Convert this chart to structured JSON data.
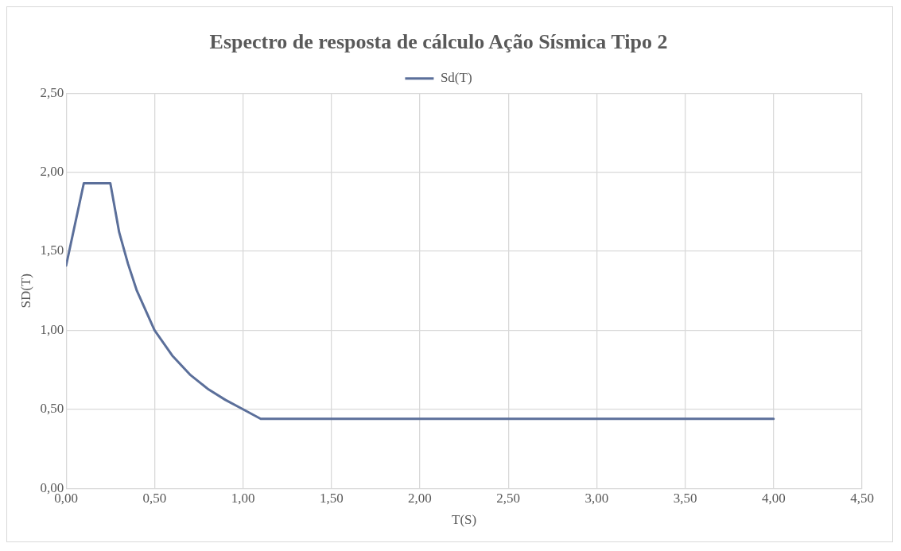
{
  "chart_data": {
    "type": "line",
    "title": "Espectro de resposta de cálculo Ação Sísmica Tipo 2",
    "xlabel": "T(S)",
    "ylabel": "SD(T)",
    "x": [
      0,
      0.1,
      0.25,
      0.3,
      0.35,
      0.4,
      0.5,
      0.6,
      0.7,
      0.8,
      0.9,
      1.0,
      1.1,
      4.0
    ],
    "series": [
      {
        "name": "Sd(T)",
        "color": "#5b6f9a",
        "values": [
          1.41,
          1.93,
          1.93,
          1.62,
          1.42,
          1.25,
          1.0,
          0.84,
          0.72,
          0.63,
          0.56,
          0.5,
          0.44,
          0.44
        ]
      }
    ],
    "xlim": [
      0,
      4.5
    ],
    "xticks": [
      {
        "value": 0,
        "label": "0,00"
      },
      {
        "value": 0.5,
        "label": "0,50"
      },
      {
        "value": 1,
        "label": "1,00"
      },
      {
        "value": 1.5,
        "label": "1,50"
      },
      {
        "value": 2,
        "label": "2,00"
      },
      {
        "value": 2.5,
        "label": "2,50"
      },
      {
        "value": 3,
        "label": "3,00"
      },
      {
        "value": 3.5,
        "label": "3,50"
      },
      {
        "value": 4,
        "label": "4,00"
      },
      {
        "value": 4.5,
        "label": "4,50"
      }
    ],
    "ylim": [
      0,
      2.5
    ],
    "yticks": [
      {
        "value": 0,
        "label": "0,00"
      },
      {
        "value": 0.5,
        "label": "0,50"
      },
      {
        "value": 1,
        "label": "1,00"
      },
      {
        "value": 1.5,
        "label": "1,50"
      },
      {
        "value": 2,
        "label": "2,00"
      },
      {
        "value": 2.5,
        "label": "2,50"
      }
    ],
    "grid": true,
    "legend": "top",
    "marker": "none",
    "line_style": "solid"
  }
}
